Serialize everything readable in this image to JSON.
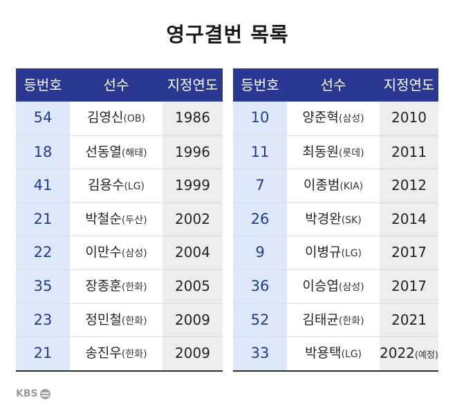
{
  "title": "영구결번 목록",
  "headers": {
    "number": "등번호",
    "player": "선수",
    "year": "지정연도"
  },
  "left_table": [
    {
      "number": "54",
      "name": "김영신",
      "team": "(OB)",
      "year": "1986",
      "note": ""
    },
    {
      "number": "18",
      "name": "선동열",
      "team": "(해태)",
      "year": "1996",
      "note": ""
    },
    {
      "number": "41",
      "name": "김용수",
      "team": "(LG)",
      "year": "1999",
      "note": ""
    },
    {
      "number": "21",
      "name": "박철순",
      "team": "(두산)",
      "year": "2002",
      "note": ""
    },
    {
      "number": "22",
      "name": "이만수",
      "team": "(삼성)",
      "year": "2004",
      "note": ""
    },
    {
      "number": "35",
      "name": "장종훈",
      "team": "(한화)",
      "year": "2005",
      "note": ""
    },
    {
      "number": "23",
      "name": "정민철",
      "team": "(한화)",
      "year": "2009",
      "note": ""
    },
    {
      "number": "21",
      "name": "송진우",
      "team": "(한화)",
      "year": "2009",
      "note": ""
    }
  ],
  "right_table": [
    {
      "number": "10",
      "name": "양준혁",
      "team": "(삼성)",
      "year": "2010",
      "note": ""
    },
    {
      "number": "11",
      "name": "최동원",
      "team": "(롯데)",
      "year": "2011",
      "note": ""
    },
    {
      "number": "7",
      "name": "이종범",
      "team": "(KIA)",
      "year": "2012",
      "note": ""
    },
    {
      "number": "26",
      "name": "박경완",
      "team": "(SK)",
      "year": "2014",
      "note": ""
    },
    {
      "number": "9",
      "name": "이병규",
      "team": "(LG)",
      "year": "2017",
      "note": ""
    },
    {
      "number": "36",
      "name": "이승엽",
      "team": "(삼성)",
      "year": "2017",
      "note": ""
    },
    {
      "number": "52",
      "name": "김태균",
      "team": "(한화)",
      "year": "2021",
      "note": ""
    },
    {
      "number": "33",
      "name": "박용택",
      "team": "(LG)",
      "year": "2022",
      "note": "(예정)"
    }
  ],
  "logo": {
    "text": "KBS",
    "icon": "kbs-logo-icon"
  },
  "colors": {
    "header_bg": "#2b3891",
    "number_bg": "#dde8f8",
    "number_text": "#233a8c",
    "year_bg": "#ededed"
  }
}
